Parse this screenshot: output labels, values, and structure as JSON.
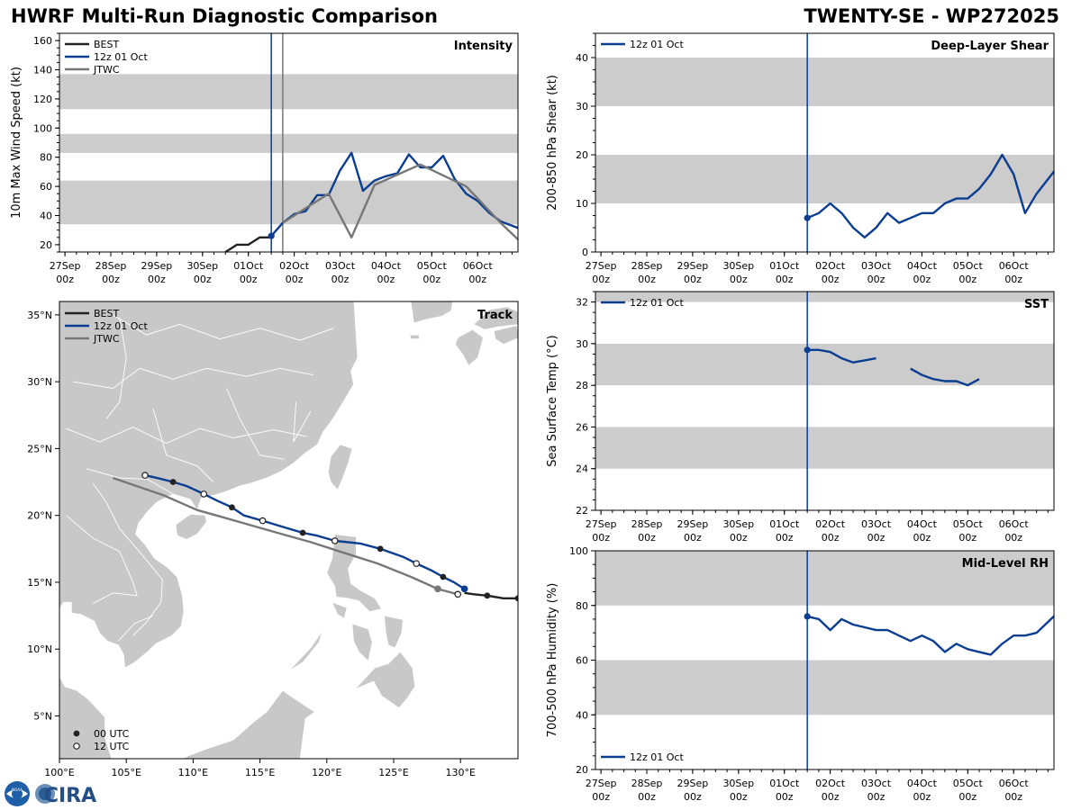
{
  "header": {
    "title_left": "HWRF Multi-Run Diagnostic Comparison",
    "title_right": "TWENTY-SE - WP272025"
  },
  "colors": {
    "best": "#222222",
    "run": "#0b3d91",
    "jtwc": "#777777",
    "band": "#cccccc",
    "land": "#c8c8c8"
  },
  "time_axis": {
    "ticks": [
      0,
      1,
      2,
      3,
      4,
      5,
      6,
      7,
      8
    ],
    "tick_labels": [
      "27Sep",
      "28Sep",
      "29Sep",
      "30Sep",
      "01Oct",
      "02Oct",
      "03Oct",
      "04Oct",
      "05Oct",
      "06Oct"
    ],
    "tick_labels_day": [
      0,
      1,
      2,
      3,
      4,
      5,
      6,
      7,
      8,
      9
    ],
    "tick_hour_label": "00z",
    "range_days": [
      -0.12,
      9.88
    ],
    "init_day": 4.5
  },
  "logo": {
    "label": "CIRA",
    "agency": "NOAA"
  },
  "chart_data": [
    {
      "id": "intensity",
      "type": "line",
      "title": "Intensity",
      "xlabel": "",
      "ylabel": "10m Max Wind Speed (kt)",
      "ylim": [
        15,
        165
      ],
      "yticks": [
        20,
        40,
        60,
        80,
        100,
        120,
        140,
        160
      ],
      "bands": [
        [
          34,
          64
        ],
        [
          83,
          96
        ],
        [
          113,
          137
        ]
      ],
      "vlines": [
        4.5,
        4.75
      ],
      "legend": [
        "BEST",
        "12z 01 Oct",
        "JTWC"
      ],
      "series": [
        {
          "name": "BEST",
          "x": [
            3.5,
            3.75,
            4.0,
            4.25,
            4.5
          ],
          "y": [
            15,
            20,
            20,
            25,
            25
          ]
        },
        {
          "name": "12z 01 Oct",
          "x": [
            4.5,
            4.75,
            5.0,
            5.25,
            5.5,
            5.75,
            6.0,
            6.25,
            6.5,
            6.75,
            7.0,
            7.25,
            7.5,
            7.75,
            8.0,
            8.25,
            8.5,
            8.75,
            9.0,
            9.25,
            9.5,
            9.75,
            10.0
          ],
          "y": [
            26,
            35,
            41,
            43,
            54,
            54,
            71,
            83,
            57,
            64,
            67,
            69,
            82,
            73,
            73,
            81,
            65,
            55,
            50,
            42,
            36,
            33,
            30
          ]
        },
        {
          "name": "JTWC",
          "x": [
            4.75,
            5.25,
            5.75,
            6.25,
            6.75,
            7.75,
            8.75,
            9.5,
            10.0
          ],
          "y": [
            35,
            45,
            55,
            25,
            61,
            75,
            60,
            35,
            20
          ]
        }
      ]
    },
    {
      "id": "shear",
      "type": "line",
      "title": "Deep-Layer Shear",
      "xlabel": "",
      "ylabel": "200-850 hPa Shear (kt)",
      "ylim": [
        0,
        45
      ],
      "yticks": [
        0,
        10,
        20,
        30,
        40
      ],
      "bands": [
        [
          10,
          20
        ],
        [
          30,
          40
        ]
      ],
      "vlines": [
        4.5
      ],
      "legend": [
        "12z 01 Oct"
      ],
      "series": [
        {
          "name": "12z 01 Oct",
          "x": [
            4.5,
            4.75,
            5.0,
            5.25,
            5.5,
            5.75,
            6.0,
            6.25,
            6.5,
            6.75,
            7.0,
            7.25,
            7.5,
            7.75,
            8.0,
            8.25,
            8.5,
            8.75,
            9.0,
            9.25,
            9.5,
            9.75,
            10.0
          ],
          "y": [
            7,
            8,
            10,
            8,
            5,
            3,
            5,
            8,
            6,
            7,
            8,
            8,
            10,
            11,
            11,
            13,
            16,
            20,
            16,
            8,
            12,
            15,
            18
          ]
        }
      ]
    },
    {
      "id": "sst",
      "type": "line",
      "title": "SST",
      "xlabel": "",
      "ylabel": "Sea Surface Temp (°C)",
      "ylim": [
        22,
        32.5
      ],
      "yticks": [
        22,
        24,
        26,
        28,
        30,
        32
      ],
      "bands": [
        [
          24,
          26
        ],
        [
          28,
          30
        ],
        [
          32,
          34
        ]
      ],
      "vlines": [
        4.5
      ],
      "legend": [
        "12z 01 Oct"
      ],
      "series": [
        {
          "name": "12z 01 Oct",
          "x": [
            4.5,
            4.75,
            5.0,
            5.25,
            5.5,
            5.75,
            6.0
          ],
          "y": [
            29.7,
            29.7,
            29.6,
            29.3,
            29.1,
            29.2,
            29.3
          ]
        },
        {
          "name": "12z 01 Oct",
          "x": [
            6.75,
            7.0,
            7.25,
            7.5,
            7.75,
            8.0,
            8.25
          ],
          "y": [
            28.8,
            28.5,
            28.3,
            28.2,
            28.2,
            28.0,
            28.3
          ]
        }
      ]
    },
    {
      "id": "rh",
      "type": "line",
      "title": "Mid-Level RH",
      "xlabel": "",
      "ylabel": "700-500 hPa Humidity (%)",
      "ylim": [
        20,
        100
      ],
      "yticks": [
        20,
        40,
        60,
        80,
        100
      ],
      "bands": [
        [
          40,
          60
        ],
        [
          80,
          100
        ]
      ],
      "vlines": [
        4.5
      ],
      "legend": [
        "12z 01 Oct"
      ],
      "series": [
        {
          "name": "12z 01 Oct",
          "x": [
            4.5,
            4.75,
            5.0,
            5.25,
            5.5,
            5.75,
            6.0,
            6.25,
            6.5,
            6.75,
            7.0,
            7.25,
            7.5,
            7.75,
            8.0,
            8.25,
            8.5,
            8.75,
            9.0,
            9.25,
            9.5,
            9.75,
            10.0
          ],
          "y": [
            76,
            75,
            71,
            75,
            73,
            72,
            71,
            71,
            69,
            67,
            69,
            67,
            63,
            66,
            64,
            63,
            62,
            66,
            69,
            69,
            70,
            74,
            78
          ]
        }
      ]
    },
    {
      "id": "track",
      "type": "scatter",
      "title": "Track",
      "xlabel": "",
      "ylabel": "",
      "xlim": [
        100,
        134.3
      ],
      "ylim": [
        1.8,
        36
      ],
      "xticks": [
        100,
        105,
        110,
        115,
        120,
        125,
        130
      ],
      "xtick_labels": [
        "100°E",
        "105°E",
        "110°E",
        "115°E",
        "120°E",
        "125°E",
        "130°E"
      ],
      "yticks": [
        5,
        10,
        15,
        20,
        25,
        30,
        35
      ],
      "ytick_labels": [
        "5°N",
        "10°N",
        "15°N",
        "20°N",
        "25°N",
        "30°N",
        "35°N"
      ],
      "legend": [
        "BEST",
        "12z 01 Oct",
        "JTWC"
      ],
      "marker_legend": [
        "00 UTC",
        "12 UTC"
      ],
      "series": [
        {
          "name": "BEST",
          "lon": [
            130.3,
            131.0,
            132.0,
            133.2,
            134.3
          ],
          "lat": [
            14.2,
            14.1,
            14.0,
            13.8,
            13.8
          ]
        },
        {
          "name": "12z 01 Oct",
          "lon": [
            130.3,
            129.5,
            128.7,
            127.8,
            126.7,
            125.7,
            124.0,
            122.5,
            120.6,
            119.2,
            118.2,
            116.5,
            115.2,
            113.8,
            112.9,
            111.8,
            110.8,
            109.5,
            108.5,
            107.3,
            106.4
          ],
          "lat": [
            14.5,
            15.0,
            15.4,
            15.9,
            16.4,
            16.9,
            17.5,
            17.9,
            18.1,
            18.5,
            18.7,
            19.2,
            19.6,
            20.0,
            20.6,
            21.1,
            21.6,
            22.2,
            22.5,
            22.8,
            23.0
          ]
        },
        {
          "name": "JTWC",
          "lon": [
            129.8,
            128.3,
            126.3,
            123.8,
            121.3,
            118.8,
            116.3,
            113.5,
            110.3,
            107.8,
            104.0
          ],
          "lat": [
            14.1,
            14.5,
            15.4,
            16.4,
            17.2,
            18.0,
            18.7,
            19.5,
            20.4,
            21.5,
            22.8
          ]
        },
        {
          "name": "00 UTC",
          "lon": [
            108.5,
            112.9,
            118.2,
            124.0,
            128.7,
            132.0,
            134.3
          ],
          "lat": [
            22.5,
            20.6,
            18.7,
            17.5,
            15.4,
            14.0,
            13.8
          ]
        },
        {
          "name": "12 UTC",
          "lon": [
            106.4,
            110.8,
            115.2,
            120.6,
            126.7,
            129.8
          ],
          "lat": [
            23.0,
            21.6,
            19.6,
            18.1,
            16.4,
            14.1
          ]
        }
      ]
    }
  ]
}
